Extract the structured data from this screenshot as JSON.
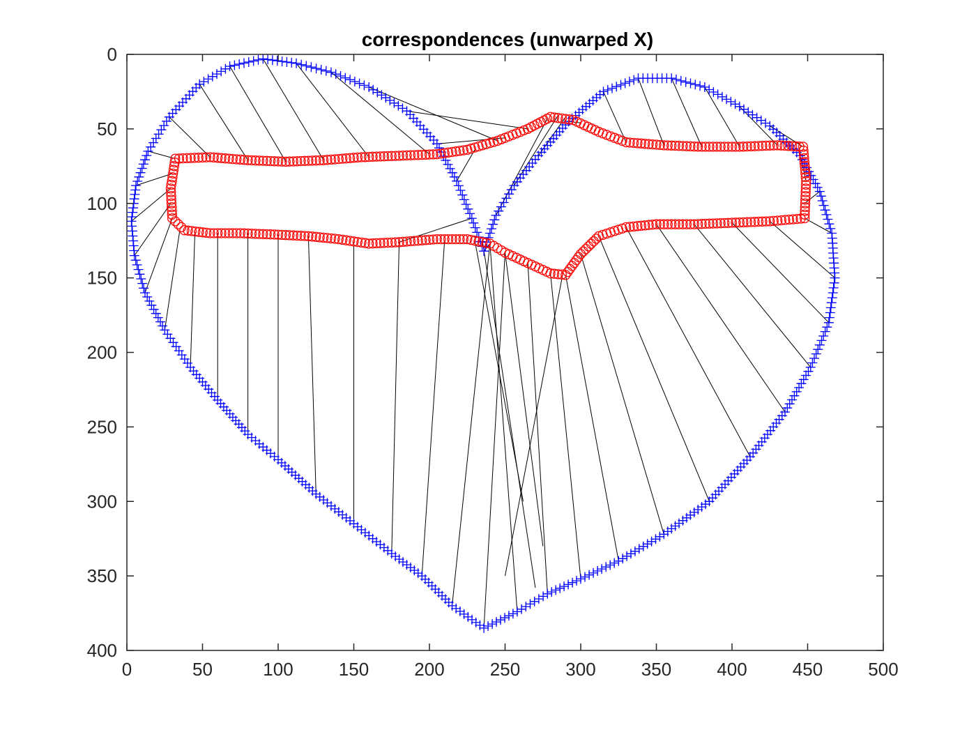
{
  "chart_data": {
    "type": "scatter",
    "title": "correspondences (unwarped X)",
    "xlabel": "",
    "ylabel": "",
    "xlim": [
      0,
      500
    ],
    "ylim": [
      0,
      400
    ],
    "y_reversed": true,
    "xticks": [
      0,
      50,
      100,
      150,
      200,
      250,
      300,
      350,
      400,
      450,
      500
    ],
    "yticks": [
      0,
      50,
      100,
      150,
      200,
      250,
      300,
      350,
      400
    ],
    "grid": false,
    "legend": "none",
    "series": [
      {
        "marker": "+",
        "color": "#0000ff",
        "kind": "heart-contour",
        "points": [
          [
            236,
            385
          ],
          [
            215,
            370
          ],
          [
            195,
            350
          ],
          [
            175,
            335
          ],
          [
            150,
            315
          ],
          [
            125,
            295
          ],
          [
            100,
            272
          ],
          [
            80,
            255
          ],
          [
            60,
            232
          ],
          [
            42,
            210
          ],
          [
            25,
            185
          ],
          [
            12,
            160
          ],
          [
            5,
            135
          ],
          [
            3,
            112
          ],
          [
            6,
            88
          ],
          [
            14,
            65
          ],
          [
            28,
            42
          ],
          [
            48,
            20
          ],
          [
            68,
            8
          ],
          [
            90,
            3
          ],
          [
            112,
            6
          ],
          [
            135,
            12
          ],
          [
            160,
            22
          ],
          [
            185,
            38
          ],
          [
            205,
            60
          ],
          [
            218,
            85
          ],
          [
            228,
            110
          ],
          [
            236,
            132
          ],
          [
            244,
            108
          ],
          [
            256,
            88
          ],
          [
            272,
            68
          ],
          [
            292,
            45
          ],
          [
            315,
            25
          ],
          [
            338,
            16
          ],
          [
            360,
            16
          ],
          [
            382,
            22
          ],
          [
            405,
            35
          ],
          [
            425,
            48
          ],
          [
            445,
            68
          ],
          [
            458,
            92
          ],
          [
            466,
            120
          ],
          [
            468,
            150
          ],
          [
            464,
            180
          ],
          [
            452,
            210
          ],
          [
            435,
            240
          ],
          [
            412,
            270
          ],
          [
            385,
            300
          ],
          [
            355,
            322
          ],
          [
            325,
            340
          ],
          [
            300,
            352
          ],
          [
            278,
            362
          ],
          [
            258,
            374
          ]
        ]
      },
      {
        "marker": "o",
        "color": "#ff0000",
        "kind": "warped-contour",
        "points": [
          [
            32,
            70
          ],
          [
            55,
            69
          ],
          [
            80,
            71
          ],
          [
            105,
            72
          ],
          [
            130,
            71
          ],
          [
            155,
            69
          ],
          [
            180,
            68
          ],
          [
            205,
            67
          ],
          [
            225,
            64
          ],
          [
            245,
            58
          ],
          [
            265,
            50
          ],
          [
            280,
            42
          ],
          [
            295,
            44
          ],
          [
            312,
            52
          ],
          [
            330,
            59
          ],
          [
            355,
            61
          ],
          [
            380,
            62
          ],
          [
            405,
            62
          ],
          [
            430,
            61
          ],
          [
            447,
            62
          ],
          [
            449,
            85
          ],
          [
            448,
            110
          ],
          [
            425,
            112
          ],
          [
            400,
            113
          ],
          [
            375,
            114
          ],
          [
            350,
            114
          ],
          [
            330,
            116
          ],
          [
            312,
            122
          ],
          [
            300,
            134
          ],
          [
            290,
            148
          ],
          [
            280,
            147
          ],
          [
            265,
            140
          ],
          [
            250,
            133
          ],
          [
            240,
            127
          ],
          [
            225,
            124
          ],
          [
            205,
            124
          ],
          [
            180,
            126
          ],
          [
            160,
            127
          ],
          [
            140,
            124
          ],
          [
            120,
            122
          ],
          [
            100,
            121
          ],
          [
            75,
            120
          ],
          [
            55,
            120
          ],
          [
            38,
            118
          ],
          [
            30,
            110
          ],
          [
            29,
            90
          ]
        ]
      }
    ],
    "correspondences": [
      [
        [
          236,
          385
        ],
        [
          250,
          133
        ]
      ],
      [
        [
          215,
          370
        ],
        [
          240,
          127
        ]
      ],
      [
        [
          195,
          350
        ],
        [
          210,
          125
        ]
      ],
      [
        [
          175,
          335
        ],
        [
          180,
          126
        ]
      ],
      [
        [
          150,
          315
        ],
        [
          150,
          126
        ]
      ],
      [
        [
          125,
          295
        ],
        [
          120,
          122
        ]
      ],
      [
        [
          100,
          272
        ],
        [
          100,
          121
        ]
      ],
      [
        [
          80,
          255
        ],
        [
          80,
          120
        ]
      ],
      [
        [
          60,
          232
        ],
        [
          60,
          120
        ]
      ],
      [
        [
          42,
          210
        ],
        [
          45,
          119
        ]
      ],
      [
        [
          25,
          185
        ],
        [
          35,
          118
        ]
      ],
      [
        [
          12,
          160
        ],
        [
          30,
          110
        ]
      ],
      [
        [
          5,
          135
        ],
        [
          29,
          100
        ]
      ],
      [
        [
          3,
          112
        ],
        [
          29,
          90
        ]
      ],
      [
        [
          6,
          88
        ],
        [
          30,
          80
        ]
      ],
      [
        [
          14,
          65
        ],
        [
          32,
          70
        ]
      ],
      [
        [
          28,
          42
        ],
        [
          55,
          69
        ]
      ],
      [
        [
          48,
          20
        ],
        [
          80,
          71
        ]
      ],
      [
        [
          68,
          8
        ],
        [
          105,
          72
        ]
      ],
      [
        [
          90,
          3
        ],
        [
          130,
          71
        ]
      ],
      [
        [
          112,
          6
        ],
        [
          160,
          69
        ]
      ],
      [
        [
          135,
          12
        ],
        [
          200,
          67
        ]
      ],
      [
        [
          160,
          22
        ],
        [
          245,
          58
        ]
      ],
      [
        [
          185,
          38
        ],
        [
          265,
          50
        ]
      ],
      [
        [
          205,
          60
        ],
        [
          250,
          56
        ]
      ],
      [
        [
          218,
          85
        ],
        [
          230,
          64
        ]
      ],
      [
        [
          228,
          110
        ],
        [
          180,
          126
        ]
      ],
      [
        [
          236,
          132
        ],
        [
          240,
          127
        ]
      ],
      [
        [
          244,
          108
        ],
        [
          278,
          43
        ]
      ],
      [
        [
          256,
          88
        ],
        [
          285,
          41
        ]
      ],
      [
        [
          272,
          68
        ],
        [
          290,
          42
        ]
      ],
      [
        [
          292,
          45
        ],
        [
          300,
          46
        ]
      ],
      [
        [
          315,
          25
        ],
        [
          330,
          59
        ]
      ],
      [
        [
          338,
          16
        ],
        [
          355,
          61
        ]
      ],
      [
        [
          360,
          16
        ],
        [
          380,
          62
        ]
      ],
      [
        [
          382,
          22
        ],
        [
          405,
          62
        ]
      ],
      [
        [
          405,
          35
        ],
        [
          430,
          61
        ]
      ],
      [
        [
          425,
          48
        ],
        [
          447,
          62
        ]
      ],
      [
        [
          445,
          68
        ],
        [
          449,
          85
        ]
      ],
      [
        [
          458,
          92
        ],
        [
          448,
          100
        ]
      ],
      [
        [
          466,
          120
        ],
        [
          448,
          110
        ]
      ],
      [
        [
          468,
          150
        ],
        [
          425,
          112
        ]
      ],
      [
        [
          464,
          180
        ],
        [
          400,
          113
        ]
      ],
      [
        [
          452,
          210
        ],
        [
          375,
          114
        ]
      ],
      [
        [
          435,
          240
        ],
        [
          350,
          114
        ]
      ],
      [
        [
          412,
          270
        ],
        [
          330,
          116
        ]
      ],
      [
        [
          385,
          300
        ],
        [
          312,
          122
        ]
      ],
      [
        [
          355,
          322
        ],
        [
          300,
          134
        ]
      ],
      [
        [
          325,
          340
        ],
        [
          290,
          148
        ]
      ],
      [
        [
          300,
          352
        ],
        [
          280,
          147
        ]
      ],
      [
        [
          278,
          362
        ],
        [
          265,
          140
        ]
      ],
      [
        [
          258,
          374
        ],
        [
          240,
          127
        ]
      ],
      [
        [
          270,
          358
        ],
        [
          235,
          125
        ]
      ],
      [
        [
          262,
          300
        ],
        [
          230,
          125
        ]
      ],
      [
        [
          275,
          330
        ],
        [
          250,
          133
        ]
      ],
      [
        [
          250,
          350
        ],
        [
          288,
          148
        ]
      ]
    ]
  }
}
